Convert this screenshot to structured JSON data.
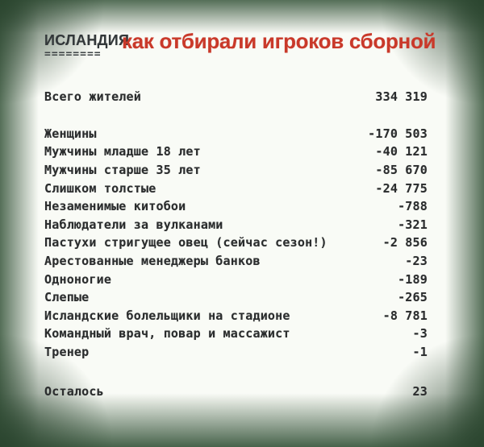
{
  "header": {
    "country_label": "ИСЛАНДИЯ",
    "country_underline": "========",
    "title": "как отбирали игроков сборной"
  },
  "colors": {
    "title_red": "#c9392a",
    "text_dark": "#2b2d2e",
    "vignette_green": "#3a563c",
    "paper": "#f9fbf6"
  },
  "list": {
    "rows": [
      {
        "label": "Всего жителей",
        "value": "334 319"
      },
      {
        "label": "Женщины",
        "value": "-170 503"
      },
      {
        "label": "Мужчины младше 18 лет",
        "value": "-40 121"
      },
      {
        "label": "Мужчины старше 35 лет",
        "value": "-85 670"
      },
      {
        "label": "Слишком толстые",
        "value": "-24 775"
      },
      {
        "label": "Незаменимые китобои",
        "value": "-788"
      },
      {
        "label": "Наблюдатели за вулканами",
        "value": "-321"
      },
      {
        "label": "Пастухи стригущее овец (сейчас сезон!)",
        "value": "-2 856"
      },
      {
        "label": "Арестованные менеджеры банков",
        "value": "-23"
      },
      {
        "label": "Одноногие",
        "value": "-189"
      },
      {
        "label": "Слепые",
        "value": "-265"
      },
      {
        "label": "Исландские болельщики на стадионе",
        "value": "-8 781"
      },
      {
        "label": "Командный врач, повар и массажист",
        "value": "-3"
      },
      {
        "label": "Тренер",
        "value": "-1"
      },
      {
        "label": "Осталось",
        "value": "23"
      }
    ]
  }
}
